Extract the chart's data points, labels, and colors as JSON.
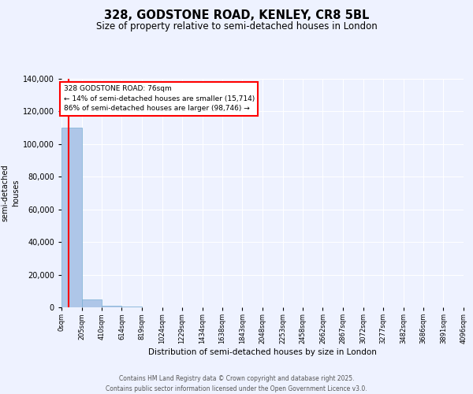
{
  "title": "328, GODSTONE ROAD, KENLEY, CR8 5BL",
  "subtitle": "Size of property relative to semi-detached houses in London",
  "xlabel": "Distribution of semi-detached houses by size in London",
  "ylabel": "Number of\nsemi-detached\nhouses",
  "property_size": 76,
  "annotation_text": "328 GODSTONE ROAD: 76sqm\n← 14% of semi-detached houses are smaller (15,714)\n86% of semi-detached houses are larger (98,746) →",
  "footer_line1": "Contains HM Land Registry data © Crown copyright and database right 2025.",
  "footer_line2": "Contains public sector information licensed under the Open Government Licence v3.0.",
  "bar_color": "#aec6e8",
  "bar_edge_color": "#7aafd4",
  "vline_color": "red",
  "background_color": "#eef2ff",
  "bin_edges": [
    0,
    205,
    410,
    614,
    819,
    1024,
    1229,
    1434,
    1638,
    1843,
    2048,
    2253,
    2458,
    2662,
    2867,
    3072,
    3277,
    3482,
    3686,
    3891,
    4096
  ],
  "bin_labels": [
    "0sqm",
    "205sqm",
    "410sqm",
    "614sqm",
    "819sqm",
    "1024sqm",
    "1229sqm",
    "1434sqm",
    "1638sqm",
    "1843sqm",
    "2048sqm",
    "2253sqm",
    "2458sqm",
    "2662sqm",
    "2867sqm",
    "3072sqm",
    "3277sqm",
    "3482sqm",
    "3686sqm",
    "3891sqm",
    "4096sqm"
  ],
  "bar_heights": [
    110000,
    5000,
    1200,
    400,
    200,
    120,
    80,
    60,
    45,
    35,
    25,
    20,
    16,
    13,
    10,
    8,
    6,
    5,
    4,
    3
  ],
  "ylim": [
    0,
    140000
  ],
  "yticks": [
    0,
    20000,
    40000,
    60000,
    80000,
    100000,
    120000,
    140000
  ]
}
